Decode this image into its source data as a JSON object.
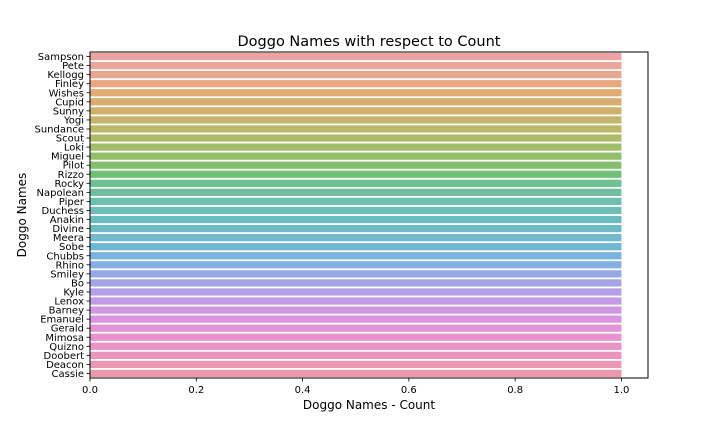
{
  "chart_data": {
    "type": "bar",
    "orientation": "horizontal",
    "title": "Doggo Names with respect to Count",
    "xlabel": "Doggo Names - Count",
    "ylabel": "Doggo Names",
    "xlim": [
      0,
      1.05
    ],
    "xticks": [
      "0.0",
      "0.2",
      "0.4",
      "0.6",
      "0.8",
      "1.0"
    ],
    "grid": false,
    "categories": [
      "Sampson",
      "Pete",
      "Kellogg",
      "Finley",
      "Wishes",
      "Cupid",
      "Sunny",
      "Yogi",
      "Sundance",
      "Scout",
      "Loki",
      "Miguel",
      "Pilot",
      "Rizzo",
      "Rocky",
      "Napolean",
      "Piper",
      "Duchess",
      "Anakin",
      "Divine",
      "Meera",
      "Sobe",
      "Chubbs",
      "Rhino",
      "Smiley",
      "Bo",
      "Kyle",
      "Lenox",
      "Barney",
      "Emanuel",
      "Gerald",
      "Mimosa",
      "Quizno",
      "Doobert",
      "Deacon",
      "Cassie"
    ],
    "values": [
      1,
      1,
      1,
      1,
      1,
      1,
      1,
      1,
      1,
      1,
      1,
      1,
      1,
      1,
      1,
      1,
      1,
      1,
      1,
      1,
      1,
      1,
      1,
      1,
      1,
      1,
      1,
      1,
      1,
      1,
      1,
      1,
      1,
      1,
      1,
      1
    ],
    "colors": [
      "#eca4a0",
      "#eba699",
      "#e9a68f",
      "#e6a782",
      "#e0aa73",
      "#d8ad6f",
      "#cfb16c",
      "#c5b56a",
      "#bbb869",
      "#aebb69",
      "#a1be6a",
      "#93bf6c",
      "#82c06f",
      "#6fc174",
      "#6ec192",
      "#6ec0a1",
      "#6ebfad",
      "#6dbeb7",
      "#6dbdbf",
      "#6ebbc6",
      "#70b9ce",
      "#72b6d6",
      "#79b3de",
      "#86aee5",
      "#95a9e7",
      "#a4a5e8",
      "#b3a0e8",
      "#c29ce6",
      "#cf98e3",
      "#da94df",
      "#e392d8",
      "#e892cf",
      "#ea93c6",
      "#eb95bd",
      "#eb97b4",
      "#ec9aab"
    ]
  }
}
